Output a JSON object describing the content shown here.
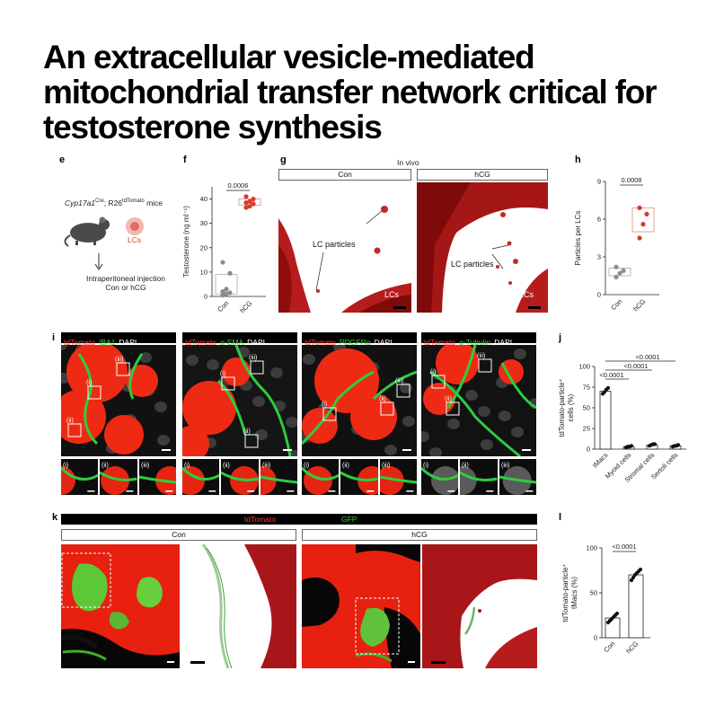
{
  "title": "An extracellular vesicle-mediated mitochondrial transfer network critical for testosterone synthesis",
  "panels": {
    "e": {
      "label": "e",
      "mouse_label_parts": [
        "Cyp17a1",
        "Cre",
        "; R26",
        "tdTomato",
        " mice"
      ],
      "lcs_label": "LCs",
      "injection_line1": "Intraperitoneal injection",
      "injection_line2": "Con or hCG"
    },
    "f": {
      "label": "f"
    },
    "g": {
      "label": "g",
      "header": "In vivo",
      "con": "Con",
      "hcg": "hCG",
      "particles_label": "LC particles",
      "lcs_label": "LCs"
    },
    "h": {
      "label": "h"
    },
    "i": {
      "label": "i",
      "columns": [
        {
          "ch1": "tdTomato",
          "ch2": "IBA1",
          "ch3": "DAPI"
        },
        {
          "ch1": "tdTomato",
          "ch2": "α-SMA",
          "ch3": "DAPI"
        },
        {
          "ch1": "tdTomato",
          "ch2": "PDGFRα",
          "ch3": "DAPI"
        },
        {
          "ch1": "tdTomato",
          "ch2": "α-Tubulin",
          "ch3": "DAPI"
        }
      ],
      "roi_labels": [
        "(i)",
        "(ii)",
        "(iii)"
      ]
    },
    "j": {
      "label": "j"
    },
    "k": {
      "label": "k",
      "ch1": "tdTomato",
      "ch2": "GFP",
      "con": "Con",
      "hcg": "hCG"
    },
    "l": {
      "label": "l"
    }
  },
  "chart_data": [
    {
      "id": "f",
      "type": "scatter",
      "ylabel": "Testosterone (ng ml⁻¹)",
      "ylim": [
        0,
        45
      ],
      "yticks": [
        0,
        10,
        20,
        30,
        40
      ],
      "categories": [
        "Con",
        "hCG"
      ],
      "series": [
        {
          "name": "Con",
          "values": [
            0.5,
            1.0,
            1.5,
            2.0,
            3.0,
            9.5,
            14.0
          ],
          "color": "#8c8c8c",
          "box": [
            1.0,
            9.0
          ]
        },
        {
          "name": "hCG",
          "values": [
            36.5,
            37.0,
            38.0,
            38.5,
            39.0,
            40.0,
            41.0
          ],
          "color": "#d93a2b",
          "box": [
            37.5,
            40.0
          ]
        }
      ],
      "comparison": {
        "p": "0.0006",
        "between": [
          "Con",
          "hCG"
        ]
      }
    },
    {
      "id": "h",
      "type": "scatter",
      "ylabel": "Particles per LCs",
      "ylim": [
        0,
        9
      ],
      "yticks": [
        0,
        3,
        6,
        9
      ],
      "categories": [
        "Con",
        "hCG"
      ],
      "series": [
        {
          "name": "Con",
          "values": [
            1.4,
            1.7,
            1.9,
            2.2
          ],
          "color": "#8c8c8c",
          "box": [
            1.5,
            2.1
          ]
        },
        {
          "name": "hCG",
          "values": [
            4.5,
            5.6,
            6.4,
            6.9
          ],
          "color": "#d93a2b",
          "box": [
            5.0,
            6.9
          ]
        }
      ],
      "comparison": {
        "p": "0.0008",
        "between": [
          "Con",
          "hCG"
        ]
      }
    },
    {
      "id": "j",
      "type": "bar",
      "ylabel": "tdTomato-particle⁺ cells (%)",
      "ylim": [
        0,
        100
      ],
      "yticks": [
        0,
        25,
        50,
        75,
        100
      ],
      "categories": [
        "tMacs",
        "Myoid cells",
        "Stromal cells",
        "Sertoli cells"
      ],
      "values": [
        70,
        3,
        5,
        4
      ],
      "points": [
        [
          67,
          69,
          72,
          74
        ],
        [
          2,
          3,
          3,
          4
        ],
        [
          4,
          5,
          6,
          6
        ],
        [
          3,
          4,
          4,
          5
        ]
      ],
      "comparisons": [
        "<0.0001",
        "<0.0001",
        "<0.0001"
      ]
    },
    {
      "id": "l",
      "type": "bar",
      "ylabel": "tdTomato-particle⁺ tMacs (%)",
      "ylim": [
        0,
        100
      ],
      "yticks": [
        0,
        50,
        100
      ],
      "categories": [
        "Con",
        "hCG"
      ],
      "values": [
        22,
        70
      ],
      "points": [
        [
          17,
          19,
          21,
          23,
          25,
          27
        ],
        [
          64,
          67,
          70,
          72,
          74,
          76
        ]
      ],
      "comparisons": [
        "<0.0001"
      ]
    }
  ]
}
